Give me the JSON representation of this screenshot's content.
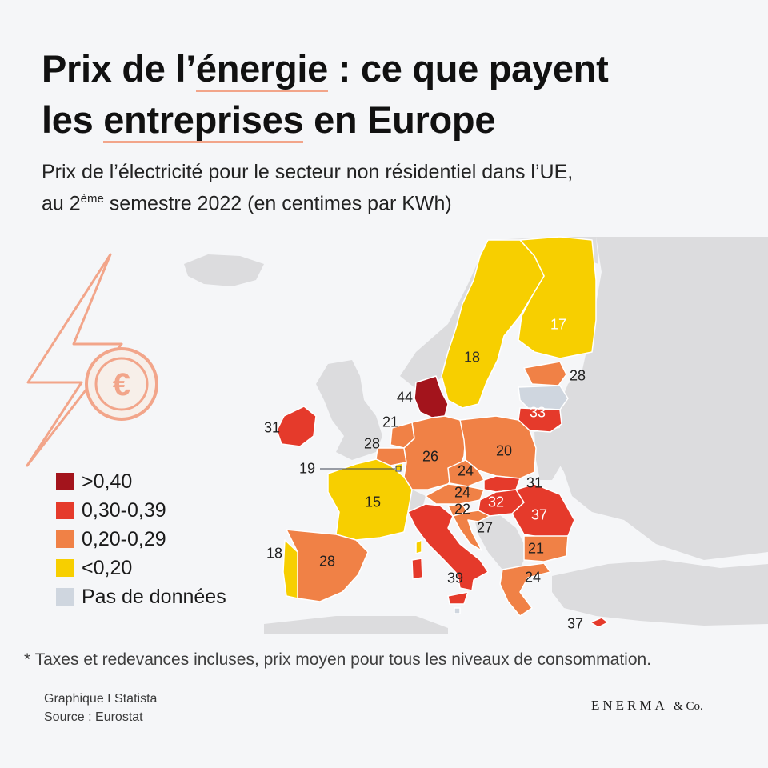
{
  "title": {
    "part1": "Prix de l’",
    "highlight1": "énergie",
    "part2": " : ce que payent",
    "part3": "les ",
    "highlight2": "entreprises",
    "part4": " en Europe"
  },
  "subtitle": {
    "line1": "Prix de l’électricité pour le secteur non résidentiel dans l’UE,",
    "line2_pre": "au 2",
    "line2_sup": "ème",
    "line2_post": " semestre 2022 (en centimes par KWh)"
  },
  "legend": [
    {
      "label": ">0,40",
      "color": "#a3141c"
    },
    {
      "label": "0,30-0,39",
      "color": "#e53a2b"
    },
    {
      "label": "0,20-0,29",
      "color": "#f08146"
    },
    {
      "label": "<0,20",
      "color": "#f7cf00"
    },
    {
      "label": "Pas de données",
      "color": "#cfd6df"
    }
  ],
  "map_data": {
    "countries": [
      {
        "id": "denmark",
        "value": "44",
        "class": ">0,40"
      },
      {
        "id": "ireland",
        "value": "31",
        "class": "0,30-0,39"
      },
      {
        "id": "lithuania",
        "value": "33",
        "class": "0,30-0,39"
      },
      {
        "id": "hungary",
        "value": "32",
        "class": "0,30-0,39"
      },
      {
        "id": "romania",
        "value": "37",
        "class": "0,30-0,39"
      },
      {
        "id": "italy",
        "value": "39",
        "class": "0,30-0,39"
      },
      {
        "id": "cyprus",
        "value": "37",
        "class": "0,30-0,39"
      },
      {
        "id": "slovakia",
        "value": "31",
        "class": "0,30-0,39"
      },
      {
        "id": "netherlands",
        "value": "21",
        "class": "0,20-0,29"
      },
      {
        "id": "belgium",
        "value": "28",
        "class": "0,20-0,29"
      },
      {
        "id": "germany",
        "value": "26",
        "class": "0,20-0,29"
      },
      {
        "id": "poland",
        "value": "20",
        "class": "0,20-0,29"
      },
      {
        "id": "czechia",
        "value": "24",
        "class": "0,20-0,29"
      },
      {
        "id": "austria",
        "value": "24",
        "class": "0,20-0,29"
      },
      {
        "id": "slovenia",
        "value": "22",
        "class": "0,20-0,29"
      },
      {
        "id": "croatia",
        "value": "27",
        "class": "0,20-0,29"
      },
      {
        "id": "bulgaria",
        "value": "21",
        "class": "0,20-0,29"
      },
      {
        "id": "greece",
        "value": "24",
        "class": "0,20-0,29"
      },
      {
        "id": "spain",
        "value": "28",
        "class": "0,20-0,29"
      },
      {
        "id": "estonia",
        "value": "28",
        "class": "0,20-0,29"
      },
      {
        "id": "luxembourg",
        "value": "19",
        "class": "<0,20"
      },
      {
        "id": "france",
        "value": "15",
        "class": "<0,20"
      },
      {
        "id": "portugal",
        "value": "18",
        "class": "<0,20"
      },
      {
        "id": "sweden",
        "value": "18",
        "class": "<0,20"
      },
      {
        "id": "finland",
        "value": "17",
        "class": "<0,20"
      },
      {
        "id": "latvia",
        "value": "",
        "class": "Pas de données"
      }
    ]
  },
  "footnote": "* Taxes et redevances incluses, prix moyen pour tous les niveaux de consommation.",
  "credit": {
    "line1": "Graphique I Statista",
    "line2": "Source : Eurostat"
  },
  "brand": {
    "name": "ENERMA",
    "suffix": "& Co."
  },
  "colors": {
    "accent": "#f2a58a",
    "non_eu": "#dcdcde",
    "sea": "#f5f6f8"
  },
  "icons": [
    "lightning-euro-icon"
  ]
}
